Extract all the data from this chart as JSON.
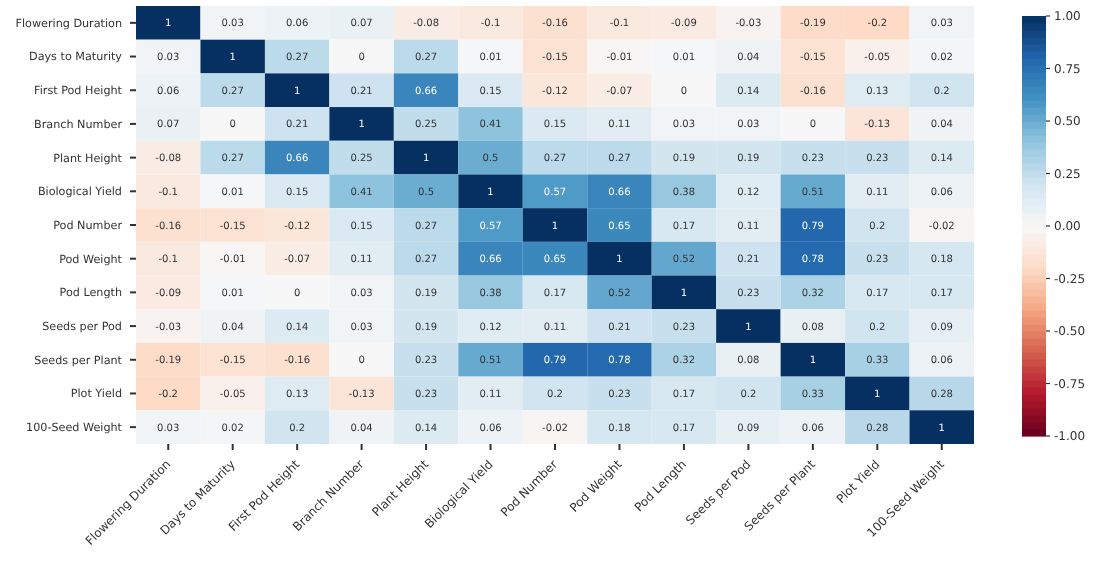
{
  "chart_data": {
    "type": "heatmap",
    "categories": [
      "Flowering Duration",
      "Days to Maturity",
      "First Pod Height",
      "Branch Number",
      "Plant Height",
      "Biological Yield",
      "Pod Number",
      "Pod Weight",
      "Pod Length",
      "Seeds per Pod",
      "Seeds per Plant",
      "Plot Yield",
      "100-Seed Weight"
    ],
    "y_categories": [
      "Flowering Duration",
      "Days to Maturity",
      "First Pod Height",
      "Branch Number",
      "Plant Height",
      "Biological Yield",
      "Pod Number",
      "Pod Weight",
      "Pod Length",
      "Seeds per Pod",
      "Seeds per Plant",
      "Plot Yield",
      "100-Seed Weight"
    ],
    "cells": [
      [
        1,
        0.03,
        0.06,
        0.07,
        -0.08,
        -0.1,
        -0.16,
        -0.1,
        -0.09,
        -0.03,
        -0.19,
        -0.2,
        0.03
      ],
      [
        0.03,
        1,
        0.27,
        0,
        0.27,
        0.01,
        -0.15,
        -0.01,
        0.01,
        0.04,
        -0.15,
        -0.05,
        0.02
      ],
      [
        0.06,
        0.27,
        1,
        0.21,
        0.66,
        0.15,
        -0.12,
        -0.07,
        0,
        0.14,
        -0.16,
        0.13,
        0.2
      ],
      [
        0.07,
        0,
        0.21,
        1,
        0.25,
        0.41,
        0.15,
        0.11,
        0.03,
        0.03,
        0,
        -0.13,
        0.04
      ],
      [
        -0.08,
        0.27,
        0.66,
        0.25,
        1,
        0.5,
        0.27,
        0.27,
        0.19,
        0.19,
        0.23,
        0.23,
        0.14
      ],
      [
        -0.1,
        0.01,
        0.15,
        0.41,
        0.5,
        1,
        0.57,
        0.66,
        0.38,
        0.12,
        0.51,
        0.11,
        0.06
      ],
      [
        -0.16,
        -0.15,
        -0.12,
        0.15,
        0.27,
        0.57,
        1,
        0.65,
        0.17,
        0.11,
        0.79,
        0.2,
        -0.02
      ],
      [
        -0.1,
        -0.01,
        -0.07,
        0.11,
        0.27,
        0.66,
        0.65,
        1,
        0.52,
        0.21,
        0.78,
        0.23,
        0.18
      ],
      [
        -0.09,
        0.01,
        0,
        0.03,
        0.19,
        0.38,
        0.17,
        0.52,
        1,
        0.23,
        0.32,
        0.17,
        0.17
      ],
      [
        -0.03,
        0.04,
        0.14,
        0.03,
        0.19,
        0.12,
        0.11,
        0.21,
        0.23,
        1,
        0.08,
        0.2,
        0.09
      ],
      [
        -0.19,
        -0.15,
        -0.16,
        0,
        0.23,
        0.51,
        0.79,
        0.78,
        0.32,
        0.08,
        1,
        0.33,
        0.06
      ],
      [
        -0.2,
        -0.05,
        0.13,
        -0.13,
        0.23,
        0.11,
        0.2,
        0.23,
        0.17,
        0.2,
        0.33,
        1,
        0.28
      ],
      [
        0.03,
        0.02,
        0.2,
        0.04,
        0.14,
        0.06,
        -0.02,
        0.18,
        0.17,
        0.09,
        0.06,
        0.28,
        1
      ]
    ],
    "data_labels": true,
    "clim": [
      -1,
      1
    ],
    "cticks": [
      {
        "value": -1,
        "label": "-1.00"
      },
      {
        "value": -0.75,
        "label": "-0.75"
      },
      {
        "value": -0.5,
        "label": "-0.50"
      },
      {
        "value": -0.25,
        "label": "-0.25"
      },
      {
        "value": 0,
        "label": "0.00"
      },
      {
        "value": 0.25,
        "label": "0.25"
      },
      {
        "value": 0.5,
        "label": "0.50"
      },
      {
        "value": 0.75,
        "label": "0.75"
      },
      {
        "value": 1,
        "label": "1.00"
      }
    ]
  }
}
